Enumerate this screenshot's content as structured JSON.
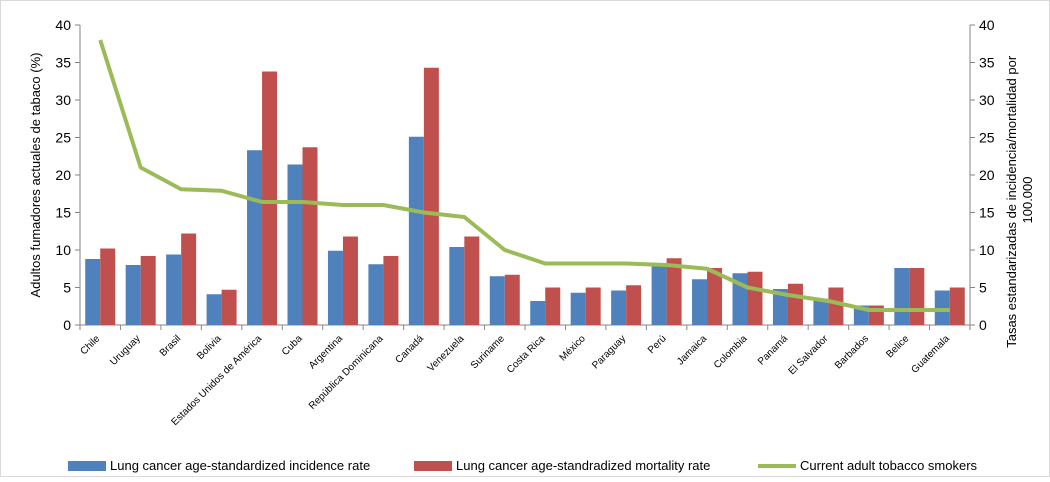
{
  "chart_data": {
    "type": "bar",
    "categories": [
      "Chile",
      "Uruguay",
      "Brasil",
      "Bolivia",
      "Estados Unidos de América",
      "Cuba",
      "Argentina",
      "República Dominicana",
      "Canadá",
      "Venezuela",
      "Suriname",
      "Costa Rica",
      "México",
      "Paraguay",
      "Perú",
      "Jamaica",
      "Colombia",
      "Panamá",
      "El Salvador",
      "Barbados",
      "Belice",
      "Guatemala"
    ],
    "series": [
      {
        "name": "Lung cancer age-standardized incidence rate",
        "type": "bar",
        "axis": "right",
        "color": "#4F81BD",
        "values": [
          8.8,
          8.0,
          9.4,
          4.1,
          23.3,
          21.4,
          9.9,
          8.1,
          25.1,
          10.4,
          6.5,
          3.2,
          4.3,
          4.6,
          8.0,
          6.1,
          6.9,
          4.8,
          3.5,
          2.6,
          7.6,
          4.6
        ]
      },
      {
        "name": "Lung cancer age-standradized mortality rate",
        "type": "bar",
        "axis": "right",
        "color": "#C0504D",
        "values": [
          10.2,
          9.2,
          12.2,
          4.7,
          33.8,
          23.7,
          11.8,
          9.2,
          34.3,
          11.8,
          6.7,
          5.0,
          5.0,
          5.3,
          8.9,
          7.6,
          7.1,
          5.5,
          5.0,
          2.6,
          7.6,
          5.0
        ]
      },
      {
        "name": "Current adult tobacco smokers",
        "type": "line",
        "axis": "left",
        "color": "#9BBB59",
        "values": [
          38,
          21,
          18.1,
          17.9,
          16.4,
          16.4,
          16.0,
          16.0,
          15.0,
          14.4,
          10.0,
          8.2,
          8.2,
          8.2,
          8.0,
          7.5,
          5.0,
          4.0,
          3.2,
          2.0,
          2.0,
          2.0
        ]
      }
    ],
    "ylabel": "Adultos fumadores actuales de tabaco (%)",
    "y2label_lines": [
      "Tasas estandarizadas de incidencia/mortalidad por",
      "100.000"
    ],
    "ylim": [
      0,
      40
    ],
    "y2lim": [
      0,
      40
    ],
    "yticks": [
      "0",
      "5",
      "10",
      "15",
      "20",
      "25",
      "30",
      "35",
      "40"
    ],
    "legend_position": "bottom",
    "grid": false
  }
}
